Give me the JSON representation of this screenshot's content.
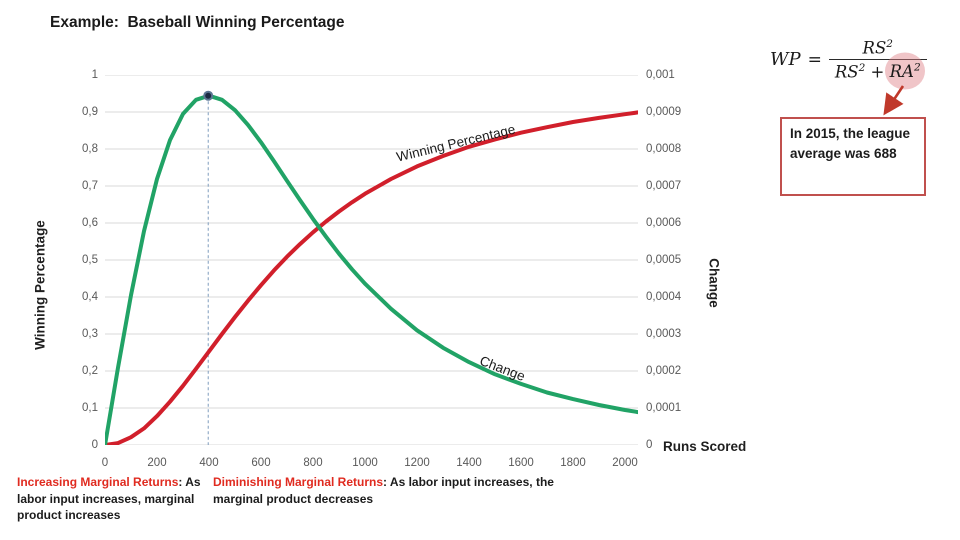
{
  "slide": {
    "title": "Example:  Baseball Winning Percentage"
  },
  "formula": {
    "lhs": "WP",
    "eq": "=",
    "rs": "RS",
    "ra": "RA",
    "exp2": "2",
    "plus": "+",
    "highlight_color": "#dd7f86",
    "arrow_color": "#c0392b"
  },
  "callout": {
    "text": "In 2015, the league average was 688",
    "border_color": "#c0504d"
  },
  "chart_data": {
    "type": "line",
    "title": "",
    "xlabel": "Runs Scored",
    "ylabel_left": "Winning Percentage",
    "ylabel_right": "Change",
    "xlim": [
      0,
      2050
    ],
    "ylim_left": [
      0,
      1
    ],
    "ylim_right": [
      0,
      0.001
    ],
    "grid": "horizontal",
    "grid_color": "#d9d9d9",
    "x_axis": {
      "labels": [
        "0",
        "200",
        "400",
        "600",
        "800",
        "1000",
        "1200",
        "1400",
        "1600",
        "1800",
        "2000"
      ],
      "values": [
        0,
        200,
        400,
        600,
        800,
        1000,
        1200,
        1400,
        1600,
        1800,
        2000
      ]
    },
    "left_axis": {
      "labels": [
        "1",
        "0,9",
        "0,8",
        "0,7",
        "0,6",
        "0,5",
        "0,4",
        "0,3",
        "0,2",
        "0,1",
        "0"
      ],
      "values": [
        1,
        0.9,
        0.8,
        0.7,
        0.6,
        0.5,
        0.4,
        0.3,
        0.2,
        0.1,
        0
      ]
    },
    "right_axis": {
      "labels": [
        "0,001",
        "0,0009",
        "0,0008",
        "0,0007",
        "0,0006",
        "0,0005",
        "0,0004",
        "0,0003",
        "0,0002",
        "0,0001",
        "0"
      ],
      "values": [
        0.001,
        0.0009,
        0.0008,
        0.0007,
        0.0006,
        0.0005,
        0.0004,
        0.0003,
        0.0002,
        0.0001,
        0
      ]
    },
    "series": [
      {
        "name": "Winning Percentage",
        "axis": "left",
        "color": "#d11f2b",
        "x": [
          0,
          50,
          100,
          150,
          200,
          250,
          300,
          350,
          400,
          450,
          500,
          550,
          600,
          650,
          700,
          750,
          800,
          850,
          900,
          950,
          1000,
          1100,
          1200,
          1300,
          1400,
          1500,
          1600,
          1700,
          1800,
          1900,
          2000,
          2050
        ],
        "y": [
          0,
          0.005,
          0.021,
          0.045,
          0.078,
          0.117,
          0.16,
          0.206,
          0.253,
          0.3,
          0.346,
          0.39,
          0.432,
          0.472,
          0.509,
          0.543,
          0.575,
          0.604,
          0.631,
          0.656,
          0.679,
          0.719,
          0.753,
          0.781,
          0.806,
          0.826,
          0.844,
          0.859,
          0.873,
          0.884,
          0.894,
          0.899
        ]
      },
      {
        "name": "Change",
        "axis": "right",
        "color": "#21a366",
        "x": [
          0,
          50,
          100,
          150,
          200,
          250,
          300,
          350,
          400,
          450,
          500,
          550,
          600,
          650,
          700,
          750,
          800,
          850,
          900,
          950,
          1000,
          1100,
          1200,
          1300,
          1400,
          1500,
          1600,
          1700,
          1800,
          1900,
          2000,
          2050
        ],
        "y": [
          0,
          0.000209,
          0.000405,
          0.000578,
          0.000719,
          0.000824,
          0.000895,
          0.000933,
          0.000944,
          0.000933,
          0.000905,
          0.000865,
          0.000818,
          0.000767,
          0.000714,
          0.000662,
          0.000611,
          0.000563,
          0.000517,
          0.000475,
          0.000436,
          0.000368,
          0.00031,
          0.000263,
          0.000224,
          0.000191,
          0.000165,
          0.000142,
          0.000124,
          0.000108,
          9.46e-05,
          8.88e-05
        ]
      }
    ],
    "peak_marker": {
      "x": 397,
      "y": 0.000944,
      "axis": "right",
      "marker_color": "#1b2a41",
      "ring_color": "#5c7693",
      "dash_color": "#7f9dbd"
    }
  },
  "footnotes": [
    {
      "lead": "Increasing Marginal Returns",
      "rest": ": As labor input increases, marginal product increases"
    },
    {
      "lead": "Diminishing Marginal Returns",
      "rest": ": As labor input increases, the marginal product decreases"
    }
  ]
}
